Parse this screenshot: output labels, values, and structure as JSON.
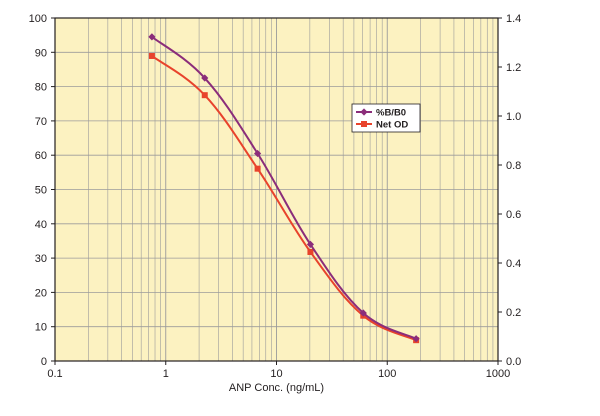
{
  "chart_data": {
    "type": "line",
    "title": "",
    "xlabel": "ANP Conc. (ng/mL)",
    "xscale": "log",
    "xlim": [
      0.1,
      1000
    ],
    "x_ticks": [
      "0.1",
      "1",
      "10",
      "100",
      "1000"
    ],
    "ylim_left": [
      0,
      100
    ],
    "y_left_ticks": [
      "0",
      "10",
      "20",
      "30",
      "40",
      "50",
      "60",
      "70",
      "80",
      "90",
      "100"
    ],
    "ylim_right": [
      0,
      1.4
    ],
    "y_right_ticks": [
      "0.0",
      "0.2",
      "0.4",
      "0.6",
      "0.8",
      "1.0",
      "1.2",
      "1.4"
    ],
    "grid": true,
    "legend_position": "right-middle",
    "colors": {
      "plot_background": "#FCF2C1",
      "grid": "#9B9B9B",
      "axis": "#231F20",
      "series_b_b0": "#8B2D7A",
      "series_net_od": "#E8432C"
    },
    "series": [
      {
        "name": "%B/B0",
        "axis": "left",
        "marker": "diamond",
        "x": [
          0.75,
          2.25,
          6.75,
          20.25,
          60.75,
          182.25
        ],
        "values": [
          94.5,
          82.5,
          60.5,
          34,
          14,
          6.5
        ]
      },
      {
        "name": "Net OD",
        "axis": "right",
        "marker": "square",
        "x": [
          0.75,
          2.25,
          6.75,
          20.25,
          60.75,
          182.25
        ],
        "values": [
          1.245,
          1.085,
          0.785,
          0.445,
          0.185,
          0.085
        ]
      }
    ]
  }
}
